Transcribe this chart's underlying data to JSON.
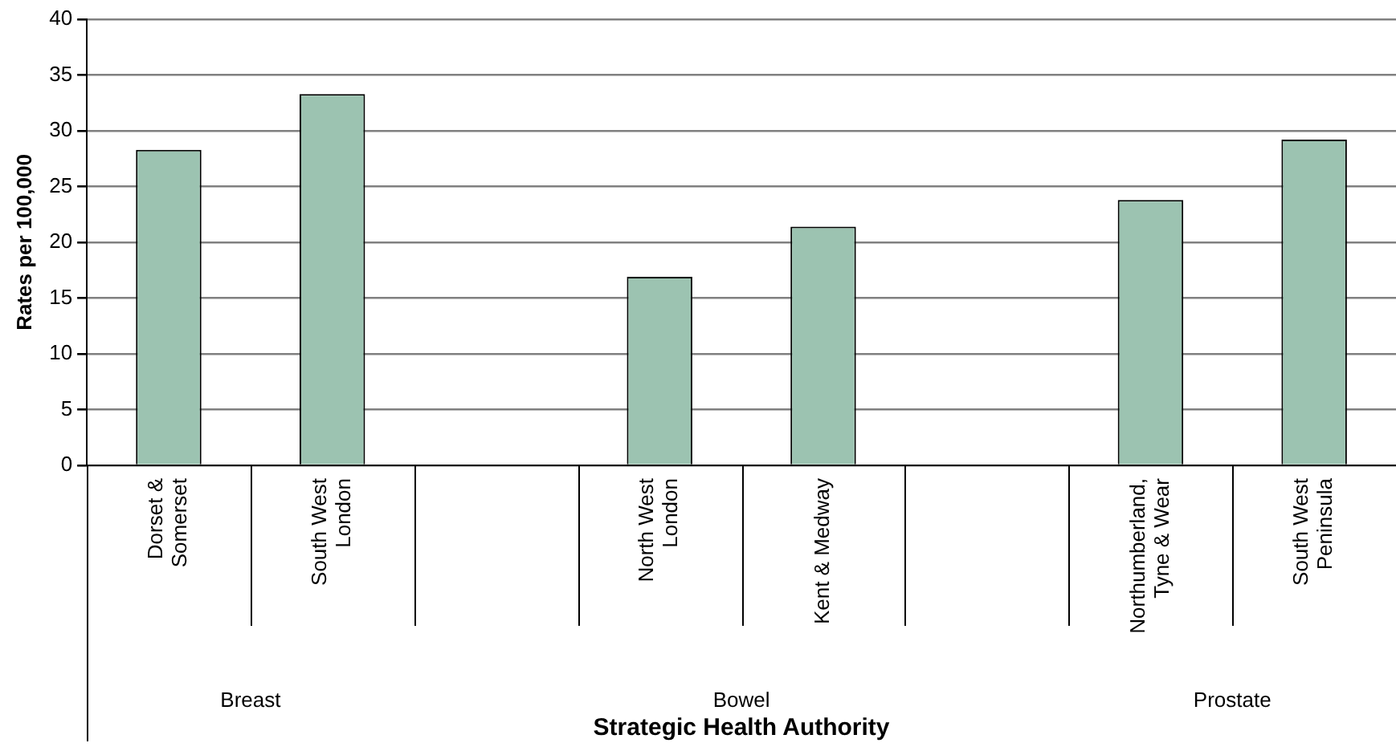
{
  "chart_data": {
    "type": "bar",
    "xlabel": "Strategic Health Authority",
    "ylabel": "Rates per 100,000",
    "categories": [
      "Dorset & Somerset",
      "South West London",
      null,
      "North West London",
      "Kent & Medway",
      null,
      "Northumberland, Tyne & Wear",
      "South West Peninsula"
    ],
    "values": [
      28.3,
      33.3,
      null,
      16.9,
      21.4,
      null,
      23.8,
      29.2
    ],
    "color": "#9cc3b1",
    "ylim": [
      0,
      40
    ],
    "yticks": [
      0,
      5,
      10,
      15,
      20,
      25,
      30,
      35,
      40
    ],
    "grid": "y",
    "legend": false,
    "annotations": [
      "Breast",
      "Bowel",
      "Prostate"
    ]
  }
}
